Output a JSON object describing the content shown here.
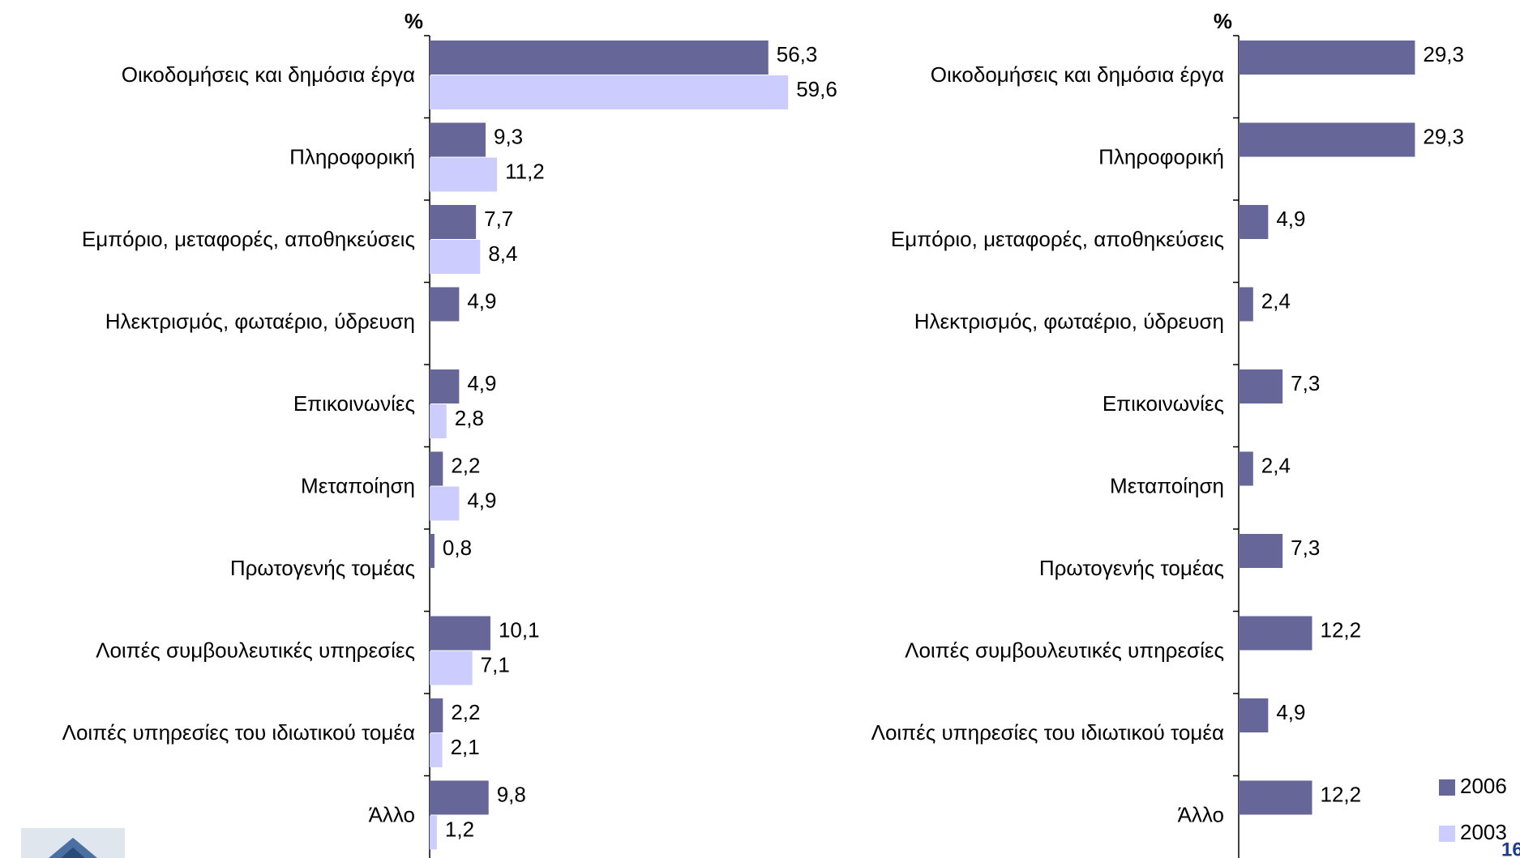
{
  "chart_data": [
    {
      "type": "barh",
      "ylabel": "%",
      "categories": [
        "Οικοδομήσεις και δημόσια έργα",
        "Πληροφορική",
        "Εμπόριο, μεταφορές, αποθηκεύσεις",
        "Ηλεκτρισμός, φωταέριο, ύδρευση",
        "Επικοινωνίες",
        "Μεταποίηση",
        "Πρωτογενής τομέας",
        "Λοιπές συμβουλευτικές υπηρεσίες",
        "Λοιπές υπηρεσίες του ιδιωτικού τομέα",
        "Άλλο"
      ],
      "xlim": [
        0,
        70
      ],
      "series": [
        {
          "name": "2006",
          "color": "#666699",
          "values": [
            56.3,
            9.3,
            7.7,
            4.9,
            4.9,
            2.2,
            0.8,
            10.1,
            2.2,
            9.8
          ],
          "value_labels": [
            "56,3",
            "9,3",
            "7,7",
            "4,9",
            "4,9",
            "2,2",
            "0,8",
            "10,1",
            "2,2",
            "9,8"
          ]
        },
        {
          "name": "2003",
          "color": "#ccccff",
          "values": [
            59.6,
            11.2,
            8.4,
            null,
            2.8,
            4.9,
            null,
            7.1,
            2.1,
            1.2
          ],
          "value_labels": [
            "59,6",
            "11,2",
            "8,4",
            null,
            "2,8",
            "4,9",
            null,
            "7,1",
            "2,1",
            "1,2"
          ]
        }
      ]
    },
    {
      "type": "barh",
      "ylabel": "%",
      "categories": [
        "Οικοδομήσεις και δημόσια έργα",
        "Πληροφορική",
        "Εμπόριο, μεταφορές, αποθηκεύσεις",
        "Ηλεκτρισμός, φωταέριο, ύδρευση",
        "Επικοινωνίες",
        "Μεταποίηση",
        "Πρωτογενής τομέας",
        "Λοιπές συμβουλευτικές υπηρεσίες",
        "Λοιπές υπηρεσίες του ιδιωτικού τομέα",
        "Άλλο"
      ],
      "xlim": [
        0,
        45
      ],
      "series": [
        {
          "color": "#666699",
          "values": [
            29.3,
            29.3,
            4.9,
            2.4,
            7.3,
            2.4,
            7.3,
            12.2,
            4.9,
            12.2
          ],
          "value_labels": [
            "29,3",
            "29,3",
            "4,9",
            "2,4",
            "7,3",
            "2,4",
            "7,3",
            "12,2",
            "4,9",
            "12,2"
          ]
        }
      ]
    }
  ],
  "page_number": "16"
}
